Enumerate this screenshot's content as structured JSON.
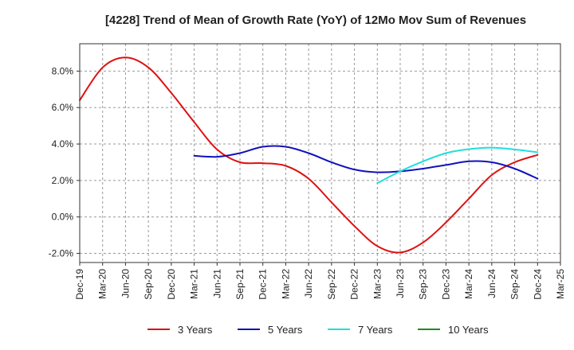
{
  "chart_data": {
    "type": "line",
    "title": "[4228]  Trend of Mean of Growth Rate (YoY) of 12Mo Mov Sum of Revenues",
    "xlabel": "",
    "ylabel": "",
    "ylim": [
      -2.5,
      9.5
    ],
    "yticks": [
      -2.0,
      0.0,
      2.0,
      4.0,
      6.0,
      8.0
    ],
    "ytick_labels": [
      "-2.0%",
      "0.0%",
      "2.0%",
      "4.0%",
      "6.0%",
      "8.0%"
    ],
    "x_categories": [
      "Dec-19",
      "Mar-20",
      "Jun-20",
      "Sep-20",
      "Dec-20",
      "Mar-21",
      "Jun-21",
      "Sep-21",
      "Dec-21",
      "Mar-22",
      "Jun-22",
      "Sep-22",
      "Dec-22",
      "Mar-23",
      "Jun-23",
      "Sep-23",
      "Dec-23",
      "Mar-24",
      "Jun-24",
      "Sep-24",
      "Dec-24",
      "Mar-25"
    ],
    "grid": true,
    "legend_position": "bottom",
    "series": [
      {
        "name": "3 Years",
        "color": "#dd1111",
        "points": [
          [
            0,
            6.4
          ],
          [
            1,
            8.2
          ],
          [
            2,
            8.75
          ],
          [
            3,
            8.2
          ],
          [
            4,
            6.8
          ],
          [
            5,
            5.2
          ],
          [
            6,
            3.7
          ],
          [
            7,
            3.0
          ],
          [
            8,
            2.95
          ],
          [
            9,
            2.8
          ],
          [
            10,
            2.1
          ],
          [
            11,
            0.8
          ],
          [
            12,
            -0.5
          ],
          [
            13,
            -1.6
          ],
          [
            14,
            -1.95
          ],
          [
            15,
            -1.4
          ],
          [
            16,
            -0.3
          ],
          [
            17,
            1.0
          ],
          [
            18,
            2.3
          ],
          [
            19,
            3.0
          ],
          [
            20,
            3.4
          ]
        ]
      },
      {
        "name": "5 Years",
        "color": "#1111bb",
        "points": [
          [
            5,
            3.35
          ],
          [
            6,
            3.3
          ],
          [
            7,
            3.5
          ],
          [
            8,
            3.85
          ],
          [
            9,
            3.85
          ],
          [
            10,
            3.5
          ],
          [
            11,
            3.0
          ],
          [
            12,
            2.6
          ],
          [
            13,
            2.45
          ],
          [
            14,
            2.5
          ],
          [
            15,
            2.65
          ],
          [
            16,
            2.85
          ],
          [
            17,
            3.05
          ],
          [
            18,
            3.0
          ],
          [
            19,
            2.65
          ],
          [
            20,
            2.1
          ]
        ]
      },
      {
        "name": "7 Years",
        "color": "#22dddd",
        "points": [
          [
            13,
            1.85
          ],
          [
            14,
            2.5
          ],
          [
            15,
            3.05
          ],
          [
            16,
            3.5
          ],
          [
            17,
            3.72
          ],
          [
            18,
            3.8
          ],
          [
            19,
            3.7
          ],
          [
            20,
            3.55
          ]
        ]
      },
      {
        "name": "10 Years",
        "color": "#228822",
        "points": []
      }
    ]
  }
}
